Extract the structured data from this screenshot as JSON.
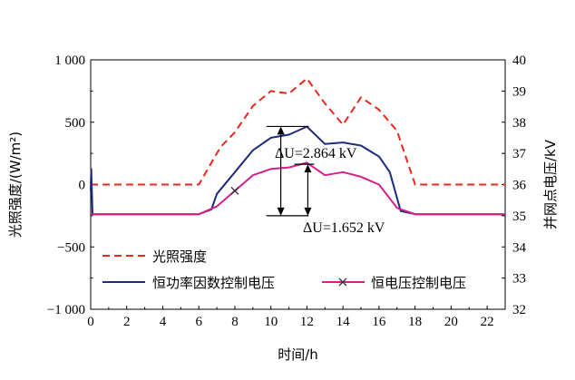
{
  "chart_data": {
    "type": "line",
    "xlabel": "时间/h",
    "ylabel_left": "光照强度/(W/m²)",
    "ylabel_right": "并网点电压/kV",
    "xlim": [
      0,
      23
    ],
    "ylim_left": [
      -1000,
      1000
    ],
    "ylim_right": [
      32,
      40
    ],
    "x_ticks": [
      "0",
      "2",
      "4",
      "6",
      "8",
      "10",
      "12",
      "14",
      "16",
      "18",
      "20",
      "22"
    ],
    "y_left_ticks": [
      "−1 000",
      "−500",
      "0",
      "500",
      "1 000"
    ],
    "y_right_ticks": [
      "32",
      "33",
      "34",
      "35",
      "36",
      "37",
      "38",
      "39",
      "40"
    ],
    "series": [
      {
        "name": "光照强度",
        "axis": "left",
        "color": "#e8281f",
        "style": "dashed",
        "x": [
          0,
          6,
          6.8,
          7.2,
          8,
          9,
          10,
          11,
          12,
          13,
          14,
          15,
          16,
          17,
          18,
          23
        ],
        "y": [
          0,
          0,
          200,
          300,
          420,
          630,
          750,
          730,
          850,
          650,
          480,
          700,
          600,
          430,
          0,
          0
        ]
      },
      {
        "name": "恒功率因数控制电压",
        "axis": "right",
        "color": "#1f2a7a",
        "style": "solid",
        "x": [
          0,
          0.03,
          0.1,
          6,
          6.7,
          7,
          8,
          9,
          10,
          11,
          12,
          13,
          14,
          15,
          16,
          16.6,
          17.2,
          18,
          23
        ],
        "y": [
          35.8,
          36.5,
          35.05,
          35.05,
          35.2,
          35.7,
          36.4,
          37.1,
          37.5,
          37.6,
          37.86,
          37.3,
          37.35,
          37.25,
          36.9,
          36.4,
          35.15,
          35.05,
          35.05
        ]
      },
      {
        "name": "恒电压控制电压",
        "axis": "right",
        "color": "#d61f86",
        "style": "solid",
        "marker": "x",
        "x": [
          0,
          6,
          7,
          8,
          9,
          10,
          11,
          12,
          13,
          14,
          15,
          16,
          17,
          18,
          23
        ],
        "y": [
          35.05,
          35.05,
          35.3,
          35.8,
          36.3,
          36.5,
          36.55,
          36.7,
          36.3,
          36.4,
          36.25,
          36.0,
          35.25,
          35.05,
          35.05
        ]
      }
    ],
    "annotations": [
      {
        "text": "ΔU=2.864 kV",
        "x": 12,
        "y1": 35.0,
        "y2": 37.864
      },
      {
        "text": "ΔU=1.652 kV",
        "x": 12,
        "y1": 35.0,
        "y2": 36.652
      }
    ],
    "legend": {
      "position": "bottom-left",
      "entries": [
        "光照强度",
        "恒功率因数控制电压",
        "恒电压控制电压"
      ]
    }
  }
}
